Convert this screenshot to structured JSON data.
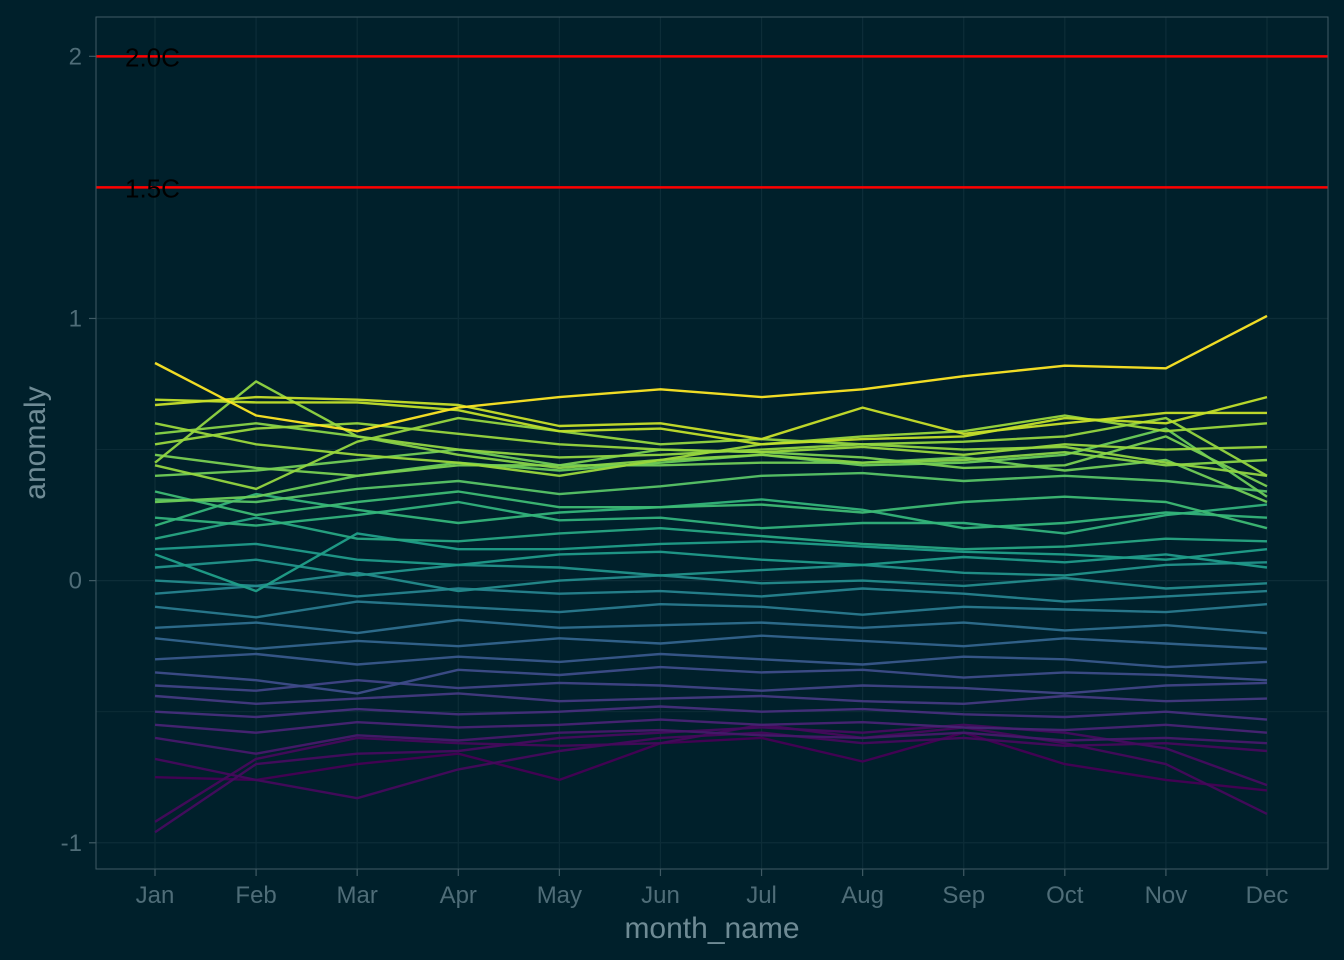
{
  "chart_data": {
    "type": "line",
    "xlabel": "month_name",
    "ylabel": "anomaly",
    "categories": [
      "Jan",
      "Feb",
      "Mar",
      "Apr",
      "May",
      "Jun",
      "Jul",
      "Aug",
      "Sep",
      "Oct",
      "Nov",
      "Dec"
    ],
    "ylim": [
      -1.1,
      2.15
    ],
    "yticks": [
      -1,
      0,
      1,
      2
    ],
    "grid": true,
    "legend": "none",
    "colors": {
      "background": "#00202b",
      "panel_border": "#3f5a64",
      "grid": "#0d2d38",
      "reference_line": "#ff0000",
      "palette": "viridis"
    },
    "reference_lines": [
      {
        "y": 2.0,
        "label": "2.0C"
      },
      {
        "y": 1.5,
        "label": "1.5C"
      }
    ],
    "series": [
      {
        "values": [
          0.83,
          0.63,
          0.57,
          0.66,
          0.7,
          0.73,
          0.7,
          0.73,
          0.78,
          0.82,
          0.81,
          1.01
        ]
      },
      {
        "values": [
          0.69,
          0.68,
          0.68,
          0.65,
          0.57,
          0.58,
          0.52,
          0.54,
          0.55,
          0.62,
          0.6,
          0.7
        ]
      },
      {
        "values": [
          0.67,
          0.7,
          0.69,
          0.67,
          0.59,
          0.6,
          0.54,
          0.66,
          0.56,
          0.6,
          0.64,
          0.64
        ]
      },
      {
        "values": [
          0.6,
          0.52,
          0.48,
          0.45,
          0.4,
          0.46,
          0.52,
          0.55,
          0.57,
          0.63,
          0.57,
          0.6
        ]
      },
      {
        "values": [
          0.52,
          0.58,
          0.6,
          0.56,
          0.52,
          0.5,
          0.49,
          0.51,
          0.48,
          0.52,
          0.5,
          0.51
        ]
      },
      {
        "values": [
          0.48,
          0.43,
          0.4,
          0.44,
          0.44,
          0.5,
          0.49,
          0.47,
          0.43,
          0.44,
          0.55,
          0.36
        ]
      },
      {
        "values": [
          0.56,
          0.6,
          0.55,
          0.48,
          0.43,
          0.46,
          0.48,
          0.45,
          0.46,
          0.49,
          0.44,
          0.46
        ]
      },
      {
        "values": [
          0.45,
          0.76,
          0.55,
          0.5,
          0.47,
          0.48,
          0.5,
          0.52,
          0.5,
          0.51,
          0.45,
          0.4
        ]
      },
      {
        "values": [
          0.44,
          0.35,
          0.53,
          0.62,
          0.57,
          0.52,
          0.54,
          0.52,
          0.53,
          0.55,
          0.62,
          0.4
        ]
      },
      {
        "values": [
          0.3,
          0.32,
          0.4,
          0.45,
          0.42,
          0.45,
          0.48,
          0.44,
          0.45,
          0.48,
          0.58,
          0.32
        ]
      },
      {
        "values": [
          0.4,
          0.42,
          0.46,
          0.5,
          0.44,
          0.44,
          0.45,
          0.45,
          0.47,
          0.42,
          0.46,
          0.3
        ]
      },
      {
        "values": [
          0.31,
          0.3,
          0.35,
          0.38,
          0.33,
          0.36,
          0.4,
          0.41,
          0.38,
          0.4,
          0.38,
          0.34
        ]
      },
      {
        "values": [
          0.34,
          0.25,
          0.3,
          0.34,
          0.28,
          0.28,
          0.29,
          0.26,
          0.3,
          0.32,
          0.3,
          0.2
        ]
      },
      {
        "values": [
          0.21,
          0.33,
          0.27,
          0.22,
          0.26,
          0.28,
          0.31,
          0.27,
          0.2,
          0.22,
          0.26,
          0.24
        ]
      },
      {
        "values": [
          0.24,
          0.21,
          0.25,
          0.3,
          0.23,
          0.24,
          0.2,
          0.22,
          0.22,
          0.18,
          0.25,
          0.29
        ]
      },
      {
        "values": [
          0.16,
          0.24,
          0.16,
          0.15,
          0.18,
          0.2,
          0.17,
          0.14,
          0.12,
          0.13,
          0.16,
          0.15
        ]
      },
      {
        "values": [
          0.1,
          -0.04,
          0.18,
          0.12,
          0.12,
          0.14,
          0.15,
          0.13,
          0.11,
          0.1,
          0.08,
          0.12
        ]
      },
      {
        "values": [
          0.12,
          0.14,
          0.08,
          0.06,
          0.1,
          0.11,
          0.08,
          0.06,
          0.09,
          0.07,
          0.1,
          0.05
        ]
      },
      {
        "values": [
          0.05,
          0.08,
          0.02,
          0.06,
          0.05,
          0.02,
          0.04,
          0.06,
          0.03,
          0.02,
          0.06,
          0.07
        ]
      },
      {
        "values": [
          0.0,
          -0.02,
          0.03,
          -0.04,
          0.0,
          0.02,
          -0.01,
          0.0,
          -0.02,
          0.01,
          -0.03,
          -0.01
        ]
      },
      {
        "values": [
          -0.05,
          -0.02,
          -0.06,
          -0.03,
          -0.05,
          -0.04,
          -0.06,
          -0.03,
          -0.05,
          -0.08,
          -0.06,
          -0.04
        ]
      },
      {
        "values": [
          -0.1,
          -0.14,
          -0.08,
          -0.1,
          -0.12,
          -0.09,
          -0.1,
          -0.13,
          -0.1,
          -0.11,
          -0.12,
          -0.09
        ]
      },
      {
        "values": [
          -0.18,
          -0.16,
          -0.2,
          -0.15,
          -0.18,
          -0.17,
          -0.16,
          -0.18,
          -0.16,
          -0.19,
          -0.17,
          -0.2
        ]
      },
      {
        "values": [
          -0.22,
          -0.26,
          -0.23,
          -0.25,
          -0.22,
          -0.24,
          -0.21,
          -0.23,
          -0.25,
          -0.22,
          -0.24,
          -0.26
        ]
      },
      {
        "values": [
          -0.3,
          -0.28,
          -0.32,
          -0.29,
          -0.31,
          -0.28,
          -0.3,
          -0.32,
          -0.29,
          -0.3,
          -0.33,
          -0.31
        ]
      },
      {
        "values": [
          -0.35,
          -0.38,
          -0.43,
          -0.34,
          -0.36,
          -0.33,
          -0.35,
          -0.34,
          -0.37,
          -0.35,
          -0.36,
          -0.38
        ]
      },
      {
        "values": [
          -0.4,
          -0.42,
          -0.38,
          -0.41,
          -0.39,
          -0.4,
          -0.42,
          -0.4,
          -0.41,
          -0.43,
          -0.4,
          -0.39
        ]
      },
      {
        "values": [
          -0.44,
          -0.47,
          -0.45,
          -0.43,
          -0.46,
          -0.45,
          -0.44,
          -0.46,
          -0.47,
          -0.44,
          -0.46,
          -0.45
        ]
      },
      {
        "values": [
          -0.5,
          -0.52,
          -0.49,
          -0.51,
          -0.5,
          -0.48,
          -0.5,
          -0.49,
          -0.51,
          -0.52,
          -0.5,
          -0.53
        ]
      },
      {
        "values": [
          -0.55,
          -0.58,
          -0.54,
          -0.56,
          -0.55,
          -0.53,
          -0.55,
          -0.54,
          -0.56,
          -0.57,
          -0.55,
          -0.58
        ]
      },
      {
        "values": [
          -0.6,
          -0.66,
          -0.59,
          -0.61,
          -0.58,
          -0.57,
          -0.59,
          -0.6,
          -0.58,
          -0.61,
          -0.6,
          -0.62
        ]
      },
      {
        "values": [
          -0.68,
          -0.76,
          -0.83,
          -0.72,
          -0.65,
          -0.6,
          -0.58,
          -0.62,
          -0.6,
          -0.63,
          -0.62,
          -0.65
        ]
      },
      {
        "values": [
          -0.75,
          -0.76,
          -0.7,
          -0.66,
          -0.76,
          -0.62,
          -0.6,
          -0.69,
          -0.58,
          -0.7,
          -0.76,
          -0.8
        ]
      },
      {
        "values": [
          -0.92,
          -0.68,
          -0.6,
          -0.62,
          -0.63,
          -0.62,
          -0.55,
          -0.6,
          -0.56,
          -0.62,
          -0.7,
          -0.89
        ]
      },
      {
        "values": [
          -0.96,
          -0.7,
          -0.66,
          -0.65,
          -0.6,
          -0.58,
          -0.56,
          -0.58,
          -0.55,
          -0.58,
          -0.64,
          -0.78
        ]
      }
    ]
  }
}
